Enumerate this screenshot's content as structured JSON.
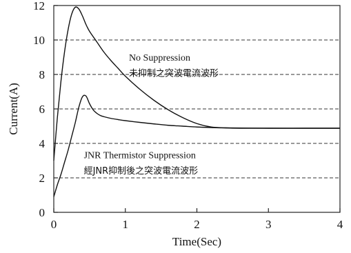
{
  "chart_data": {
    "type": "line",
    "title": "",
    "xlabel": "Time(Sec)",
    "ylabel": "Current(A)",
    "xlim": [
      0,
      4
    ],
    "ylim": [
      0,
      12
    ],
    "x_ticks": [
      "0",
      "1",
      "2",
      "3",
      "4"
    ],
    "y_ticks": [
      "0",
      "2",
      "4",
      "6",
      "8",
      "10",
      "12"
    ],
    "grid": "horizontal dashed",
    "series": [
      {
        "x": [
          0,
          0.05,
          0.1,
          0.15,
          0.2,
          0.25,
          0.3,
          0.35,
          0.4,
          0.45,
          0.5,
          0.6,
          0.7,
          0.8,
          0.9,
          1.0,
          1.2,
          1.4,
          1.6,
          1.8,
          2.0,
          2.2,
          2.4,
          2.6,
          3.0,
          3.5,
          4.0
        ],
        "y": [
          3.0,
          5.5,
          7.6,
          9.3,
          10.6,
          11.5,
          11.9,
          11.8,
          11.4,
          10.9,
          10.5,
          9.9,
          9.3,
          8.8,
          8.35,
          7.9,
          7.15,
          6.5,
          5.95,
          5.5,
          5.15,
          4.95,
          4.9,
          4.88,
          4.88,
          4.88,
          4.88
        ]
      },
      {
        "x": [
          0,
          0.05,
          0.1,
          0.15,
          0.2,
          0.25,
          0.3,
          0.35,
          0.4,
          0.45,
          0.5,
          0.55,
          0.6,
          0.65,
          0.7,
          0.8,
          0.9,
          1.0,
          1.2,
          1.4,
          1.6,
          1.8,
          2.0,
          2.2,
          2.4,
          3.0,
          3.5,
          4.0
        ],
        "y": [
          0.9,
          1.6,
          2.2,
          2.9,
          3.6,
          4.4,
          5.2,
          6.1,
          6.7,
          6.75,
          6.3,
          5.95,
          5.75,
          5.62,
          5.55,
          5.45,
          5.38,
          5.32,
          5.22,
          5.13,
          5.05,
          5.0,
          4.95,
          4.92,
          4.9,
          4.88,
          4.88,
          4.88
        ]
      }
    ],
    "annotations": [
      {
        "text": "No Suppression",
        "x": 1.05,
        "y": 8.8
      },
      {
        "text": "未抑制之突波電流波形",
        "x": 1.05,
        "y": 7.9
      },
      {
        "text": "JNR Thermistor Suppression",
        "x": 0.42,
        "y": 3.15
      },
      {
        "text": "經JNR抑制後之突波電流波形",
        "x": 0.42,
        "y": 2.25
      }
    ]
  }
}
